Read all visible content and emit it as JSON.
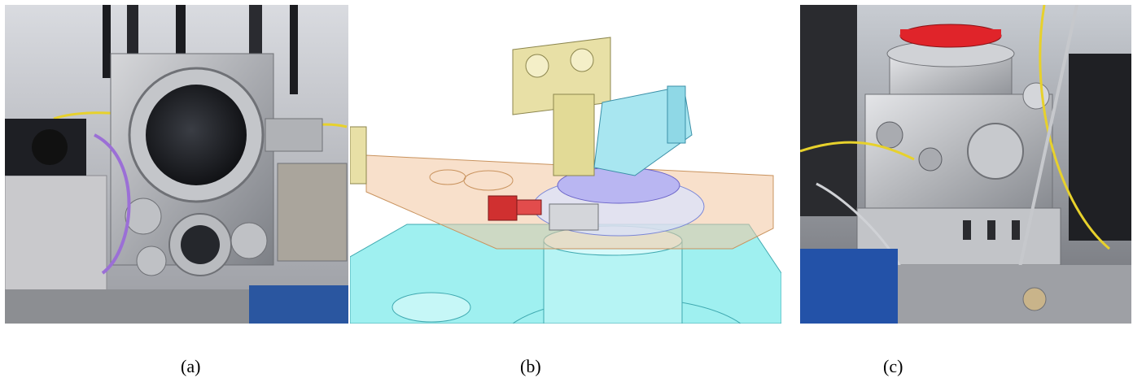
{
  "figure": {
    "panels": [
      {
        "label": "(a)",
        "icon": "photo-vacuum-chamber-icon"
      },
      {
        "label": "(b)",
        "icon": "cad-stage-assembly-icon"
      },
      {
        "label": "(c)",
        "icon": "photo-chamber-stage-icon"
      }
    ]
  },
  "colors": {
    "steel": "#b7b8bc",
    "cad_cyan": "#9ff0f0",
    "cad_peach": "#f2c7a0",
    "cad_yellow": "#e8e0a6",
    "red_part": "#d03030",
    "red_cap": "#e0242a"
  }
}
